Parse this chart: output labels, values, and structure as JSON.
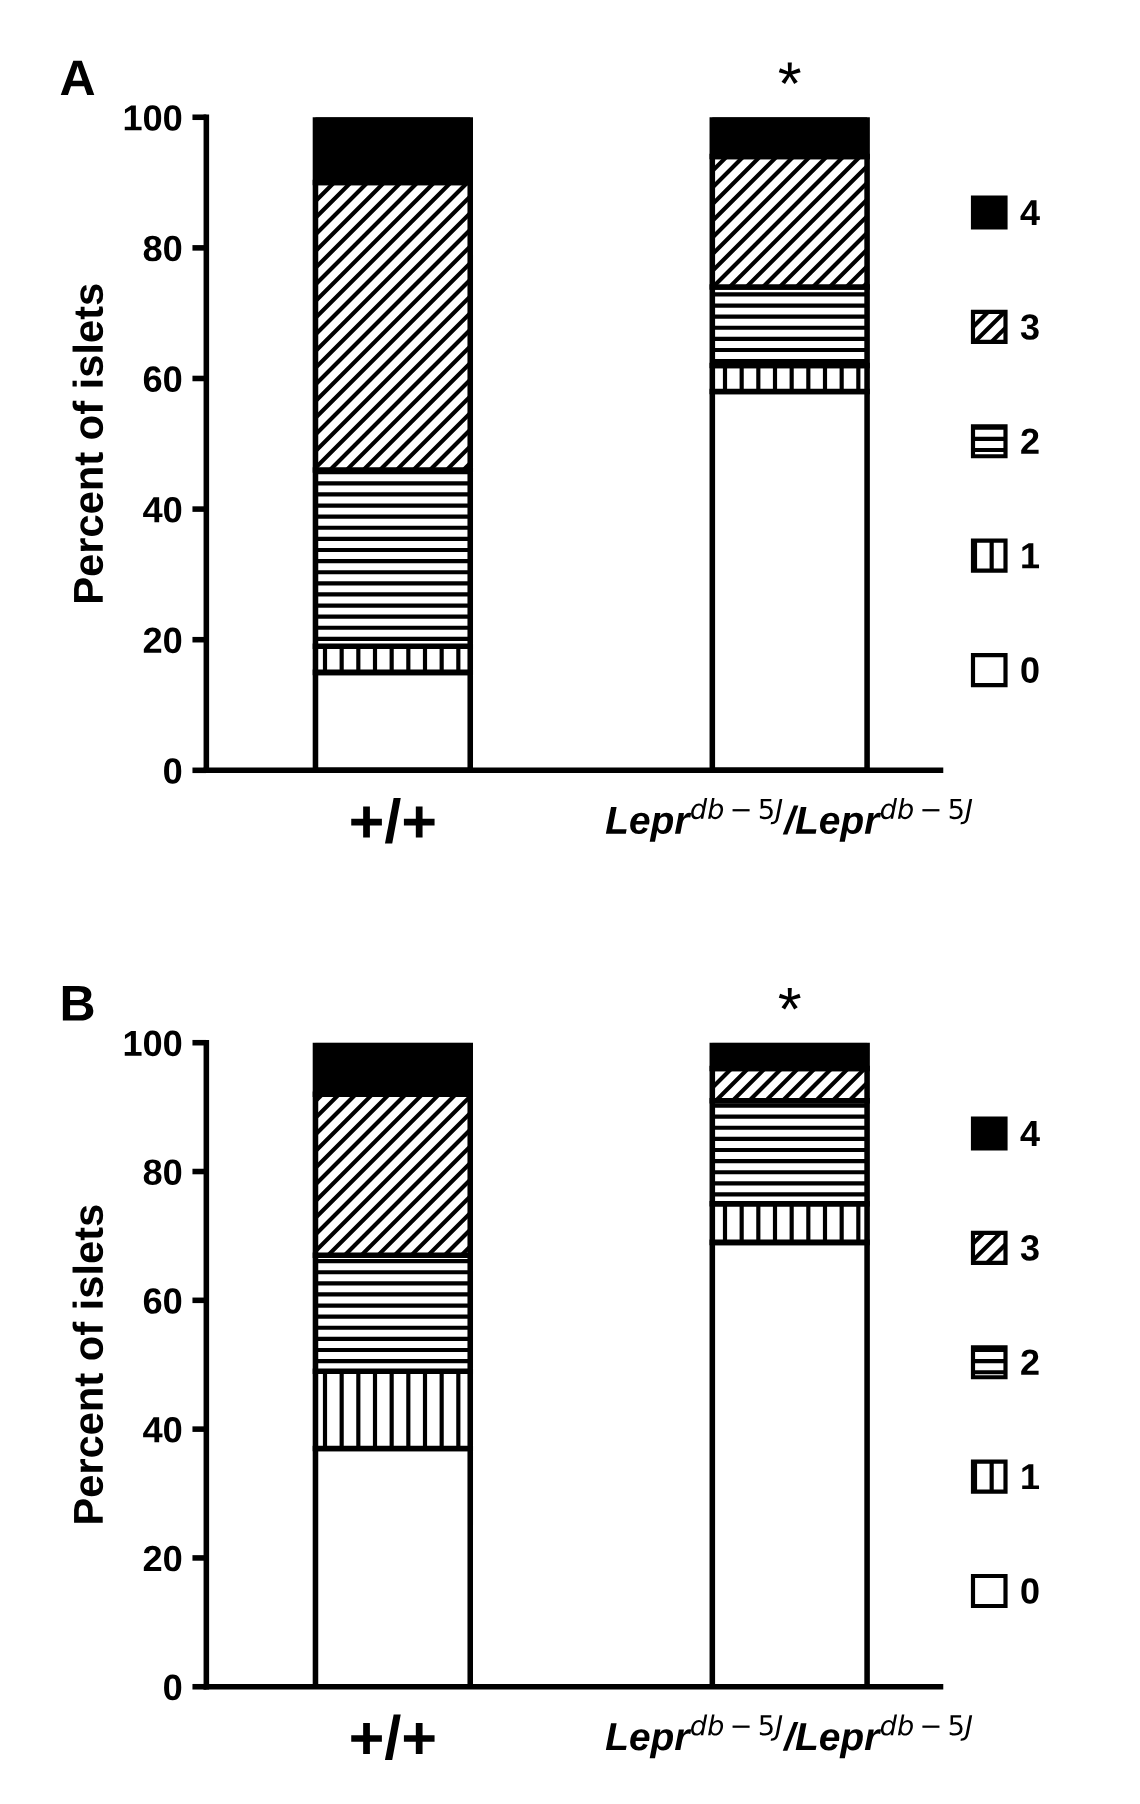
{
  "chart_data": [
    {
      "type": "bar",
      "title": "A",
      "ylabel": "Percent of islets",
      "stacked": true,
      "categories": [
        "+/+",
        "Lepr$^{db−5J}$/Lepr$^{db−5J}$"
      ],
      "series": [
        {
          "name": "0",
          "color": "#ffffff",
          "values": [
            15,
            58
          ]
        },
        {
          "name": "1",
          "color": "#000000",
          "values": [
            4,
            4
          ]
        },
        {
          "name": "2",
          "color": "#000000",
          "values": [
            27,
            12
          ]
        },
        {
          "name": "3",
          "color": "#000000",
          "values": [
            44,
            20
          ]
        },
        {
          "name": "4",
          "color": "#000000",
          "values": [
            10,
            6
          ]
        }
      ],
      "ylim": [
        0,
        100
      ],
      "yticks": [
        0,
        20,
        40,
        60,
        80,
        100
      ],
      "legend": "right",
      "grid": false,
      "annotations": [
        {
          "text": "*",
          "x": "Lepr$^{db−5J}$/Lepr$^{db−5J}$",
          "y": 100
        }
      ]
    },
    {
      "type": "bar",
      "title": "B",
      "ylabel": "Percent of islets",
      "stacked": true,
      "categories": [
        "+/+",
        "Lepr$^{db−5J}$/Lepr$^{db−5J}$"
      ],
      "series": [
        {
          "name": "0",
          "color": "#ffffff",
          "values": [
            37,
            69
          ]
        },
        {
          "name": "1",
          "color": "#000000",
          "values": [
            12,
            6
          ]
        },
        {
          "name": "2",
          "color": "#000000",
          "values": [
            18,
            16
          ]
        },
        {
          "name": "3",
          "color": "#000000",
          "values": [
            25,
            5
          ]
        },
        {
          "name": "4",
          "color": "#000000",
          "values": [
            8,
            4
          ]
        }
      ],
      "ylim": [
        0,
        100
      ],
      "yticks": [
        0,
        20,
        40,
        60,
        80,
        100
      ],
      "legend": "right",
      "grid": false,
      "annotations": [
        {
          "text": "*",
          "x": "Lepr$^{db−5J}$/Lepr$^{db−5J}$",
          "y": 100
        }
      ]
    }
  ]
}
